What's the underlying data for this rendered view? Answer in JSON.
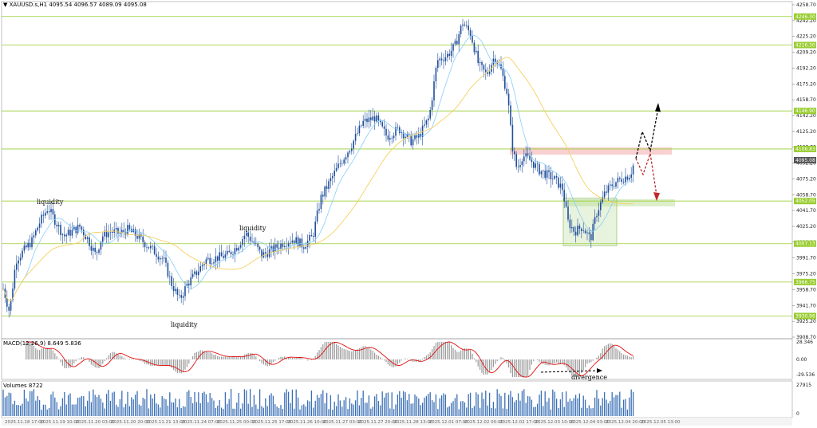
{
  "header": {
    "symbol": "XAUUSD.s,H1",
    "ohlc": "4095.54 4096.57 4089.09 4095.08"
  },
  "price_axis": {
    "ticks": [
      "4258.70",
      "4242.20",
      "4225.20",
      "4209.20",
      "4192.20",
      "4175.20",
      "4158.70",
      "4142.20",
      "4125.20",
      "4108.70",
      "4092.20",
      "4075.20",
      "4058.70",
      "4041.70",
      "4025.20",
      "4008.20",
      "3991.70",
      "3975.20",
      "3958.70",
      "3941.70",
      "3925.20",
      "3908.70"
    ],
    "level_labels": [
      "4246.30",
      "4216.30",
      "4146.90",
      "4106.83",
      "4052.05",
      "4007.13",
      "3966.75",
      "3930.96"
    ],
    "current_price": "4095.08"
  },
  "annotations": {
    "liquidity_left": "liquidity",
    "liquidity_mid": "liquidity",
    "liquidity_low": "liquidity",
    "divergence": "divergence"
  },
  "macd": {
    "title": "MACD(12,26,9) 8.649 5.836",
    "ticks": [
      "28.346",
      "0.00",
      "-29.536"
    ]
  },
  "volumes": {
    "title": "Volumes 8722",
    "ticks": [
      "27915",
      "0"
    ]
  },
  "time_axis": {
    "labels": [
      "2025.11.18 17:00",
      "2025.11.19 10:00",
      "2025.11.20 03:00",
      "2025.11.20 20:00",
      "2025.11.21 13:00",
      "2025.11.24 07:00",
      "2025.11.25 00:00",
      "2025.11.25 17:00",
      "2025.11.26 10:00",
      "2025.11.27 03:00",
      "2025.11.27 20:00",
      "2025.11.28 13:00",
      "2025.12.01 07:00",
      "2025.12.02 00:00",
      "2025.12.02 17:00",
      "2025.12.03 10:00",
      "2025.12.04 03:00",
      "2025.12.04 20:00",
      "2025.12.05 13:00"
    ]
  },
  "colors": {
    "candle": "#1f4e9c",
    "level_line": "#9acd32",
    "ma_fast": "#87cefa",
    "ma_slow": "#f5d060",
    "macd_signal": "#e01010",
    "volume": "#3a6fb5",
    "resist_zone": "#f8c8c8",
    "support_zone": "#d8ecc4"
  }
}
